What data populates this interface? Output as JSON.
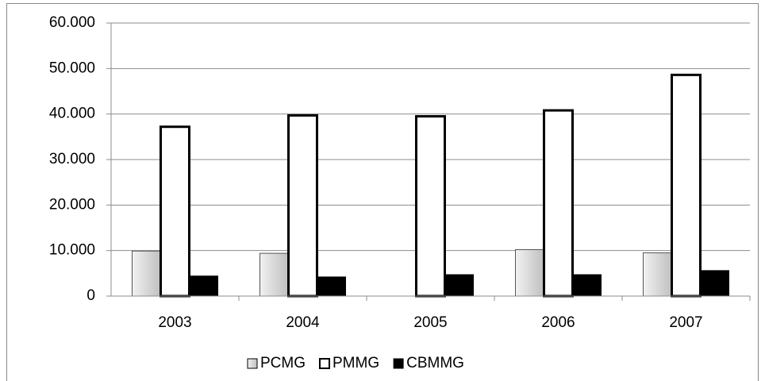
{
  "chart_data": {
    "type": "bar",
    "categories": [
      "2003",
      "2004",
      "2005",
      "2006",
      "2007"
    ],
    "series": [
      {
        "name": "PCMG",
        "color": "#d9d9d9",
        "values": [
          9900,
          9400,
          null,
          10200,
          9500
        ]
      },
      {
        "name": "PMMG",
        "color": "#ffffff",
        "values": [
          37200,
          39700,
          39500,
          40800,
          48600
        ]
      },
      {
        "name": "CBMMG",
        "color": "#000000",
        "values": [
          4400,
          4200,
          4700,
          4700,
          5600
        ]
      }
    ],
    "ylim": [
      0,
      60000
    ],
    "yticks": [
      0,
      {
        "value": 10000,
        "label": "10.000"
      },
      {
        "value": 20000,
        "label": "20.000"
      },
      {
        "value": 30000,
        "label": "30.000"
      },
      {
        "value": 40000,
        "label": "40.000"
      },
      {
        "value": 50000,
        "label": "50.000"
      },
      {
        "value": 60000,
        "label": "60.000"
      }
    ],
    "grid": true,
    "legend": "bottom"
  }
}
